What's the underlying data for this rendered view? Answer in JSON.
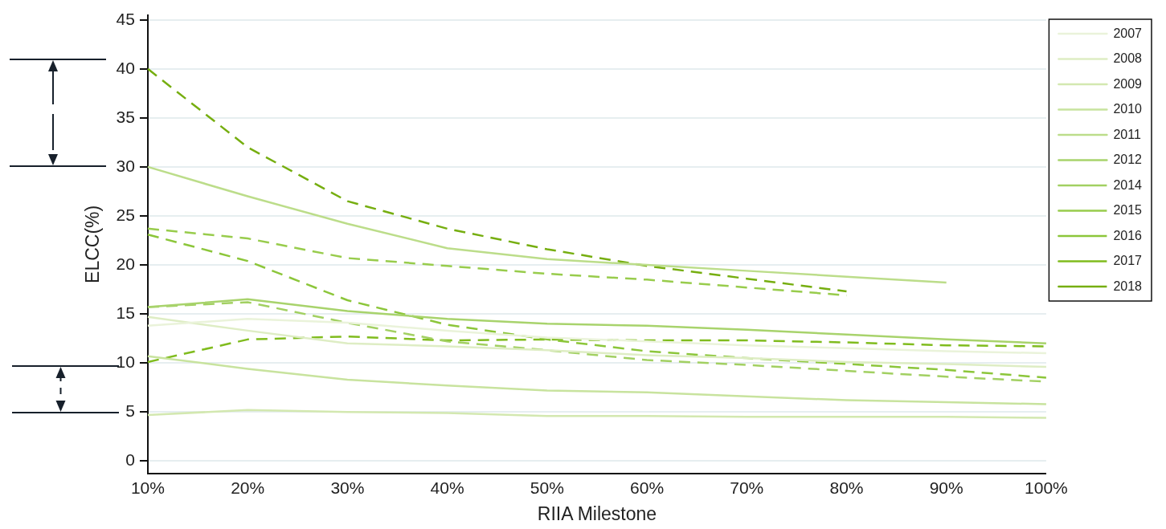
{
  "chart_data": {
    "type": "line",
    "xlabel": "RIIA Milestone",
    "ylabel": "ELCC(%)",
    "categories": [
      "10%",
      "20%",
      "30%",
      "40%",
      "50%",
      "60%",
      "70%",
      "80%",
      "90%",
      "100%"
    ],
    "ylim": [
      -1.3,
      45.5
    ],
    "yticks": [
      0,
      5,
      10,
      15,
      20,
      25,
      30,
      35,
      40,
      45
    ],
    "grid": "y",
    "legend": "top right",
    "marker": "none",
    "series": [
      {
        "name": "2007",
        "color": "#eaf3da",
        "line_style": "solid",
        "values": [
          13.8,
          14.5,
          14.1,
          13.3,
          12.6,
          12.2,
          11.8,
          11.5,
          11.2,
          11.0
        ]
      },
      {
        "name": "2008",
        "color": "#deedc4",
        "line_style": "solid",
        "values": [
          14.7,
          13.3,
          12.0,
          11.7,
          11.3,
          10.8,
          10.5,
          10.1,
          9.9,
          9.6
        ]
      },
      {
        "name": "2009",
        "color": "#d3e8b0",
        "line_style": "solid",
        "values": [
          4.7,
          5.2,
          5.0,
          4.9,
          4.6,
          4.6,
          4.5,
          4.5,
          4.5,
          4.4
        ]
      },
      {
        "name": "2010",
        "color": "#c8e39e",
        "line_style": "solid",
        "values": [
          10.7,
          9.4,
          8.3,
          7.7,
          7.2,
          7.0,
          6.6,
          6.2,
          6.0,
          5.8
        ]
      },
      {
        "name": "2011",
        "color": "#bcdd8a",
        "line_style": "solid",
        "values": [
          30,
          27,
          24.2,
          21.7,
          20.6,
          20.0,
          19.4,
          18.8,
          18.2,
          null
        ]
      },
      {
        "name": "2012",
        "color": "#a8d36c",
        "line_style": "solid",
        "values": [
          15.7,
          16.5,
          15.3,
          14.5,
          14.0,
          13.8,
          13.4,
          12.9,
          12.4,
          12.0
        ]
      },
      {
        "name": "2014",
        "color": "#a2d062",
        "line_style": "dashed",
        "values": [
          15.7,
          16.2,
          14.1,
          12.2,
          11.3,
          10.3,
          9.8,
          9.2,
          8.6,
          8.1
        ]
      },
      {
        "name": "2015",
        "color": "#98cc4c",
        "line_style": "dashed",
        "values": [
          23.7,
          22.7,
          20.7,
          19.9,
          19.1,
          18.5,
          17.7,
          16.9,
          null,
          null
        ]
      },
      {
        "name": "2016",
        "color": "#8cc63a",
        "line_style": "dashed",
        "values": [
          23.1,
          20.4,
          16.4,
          13.9,
          12.4,
          11.2,
          10.5,
          9.9,
          9.3,
          8.5
        ]
      },
      {
        "name": "2017",
        "color": "#80bc1e",
        "line_style": "dashed",
        "values": [
          10.1,
          12.4,
          12.7,
          12.3,
          12.4,
          12.3,
          12.3,
          12.1,
          11.8,
          11.7
        ]
      },
      {
        "name": "2018",
        "color": "#76ae10",
        "line_style": "dashed",
        "values": [
          40,
          32,
          26.5,
          23.7,
          21.6,
          19.9,
          18.6,
          17.3,
          null,
          null
        ]
      }
    ]
  }
}
